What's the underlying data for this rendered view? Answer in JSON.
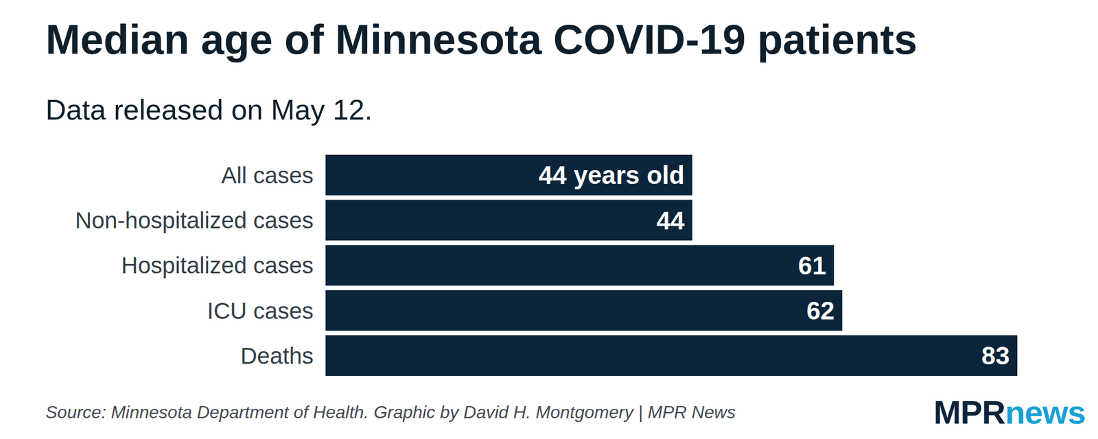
{
  "chart_data": {
    "type": "bar",
    "title": "Median age of Minnesota COVID-19 patients",
    "subtitle": "Data released on May 12.",
    "categories": [
      "All cases",
      "Non-hospitalized cases",
      "Hospitalized cases",
      "ICU cases",
      "Deaths"
    ],
    "values": [
      44,
      44,
      61,
      62,
      83
    ],
    "value_labels": [
      "44 years old",
      "44",
      "61",
      "62",
      "83"
    ],
    "color": "#0b253b",
    "orientation": "horizontal",
    "xlim": [
      0,
      83
    ],
    "data_labels": true,
    "tick_labels": "y",
    "grid": false,
    "source": "Source: Minnesota Department of Health. Graphic by David H. Montgomery | MPR News",
    "logo": [
      "MPR",
      "news"
    ]
  }
}
